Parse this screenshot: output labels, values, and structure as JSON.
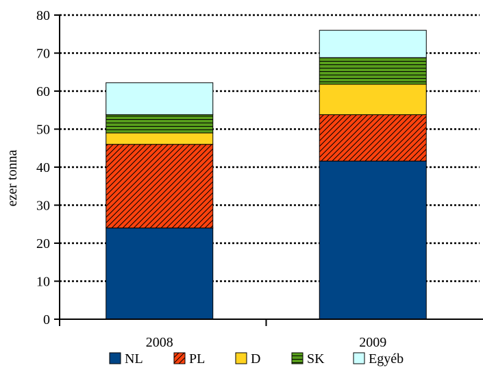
{
  "chart_data": {
    "type": "bar",
    "stacked": true,
    "categories": [
      "2008",
      "2009"
    ],
    "series": [
      {
        "name": "NL",
        "values": [
          24,
          41.6
        ],
        "color": "#004586",
        "pattern": "solid"
      },
      {
        "name": "PL",
        "values": [
          22,
          12.2
        ],
        "color": "#ff420e",
        "pattern": "diagonal-hatch"
      },
      {
        "name": "D",
        "values": [
          3,
          8
        ],
        "color": "#ffd320",
        "pattern": "solid"
      },
      {
        "name": "SK",
        "values": [
          4.8,
          7
        ],
        "color": "#579d1c",
        "pattern": "horizontal-lines"
      },
      {
        "name": "Egyéb",
        "values": [
          8.4,
          7.2
        ],
        "color": "#ccffff",
        "pattern": "solid"
      }
    ],
    "ylabel": "ezer tonna",
    "xlabel": "",
    "ylim": [
      0,
      80
    ],
    "yticks": [
      0,
      10,
      20,
      30,
      40,
      50,
      60,
      70,
      80
    ],
    "grid": true,
    "legend": "bottom"
  }
}
